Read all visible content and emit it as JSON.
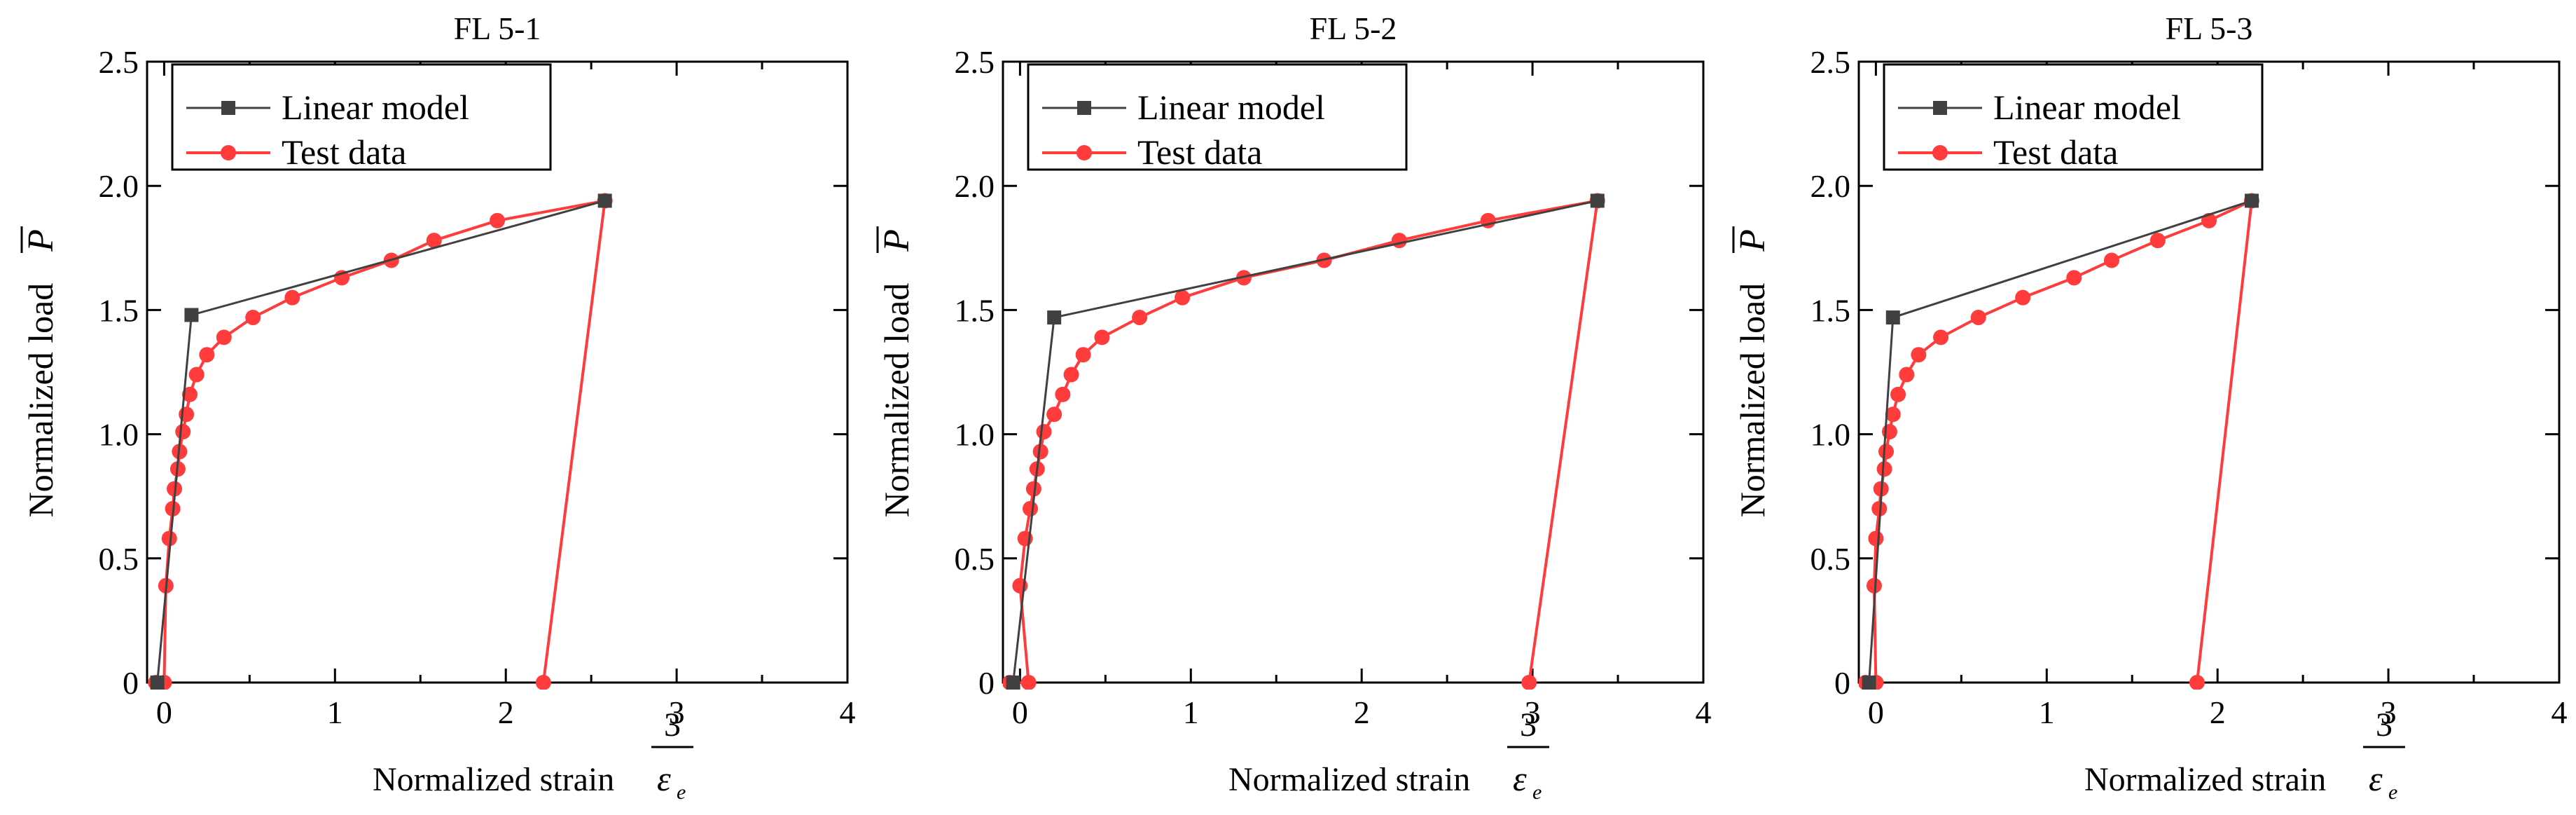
{
  "chart_data": [
    {
      "type": "line",
      "title": "FL 5-1",
      "xlabel": "Normalized strain",
      "xlabel_symbol": "ε",
      "xlabel_subscript": "e",
      "xlabel_overbar_value": "3",
      "ylabel": "Normalized load",
      "ylabel_symbol": "P",
      "xlim": [
        -0.1,
        4
      ],
      "ylim": [
        0,
        2.5
      ],
      "xticks": [
        "0",
        "1",
        "2",
        "3",
        "4"
      ],
      "yticks": [
        "0",
        "0.5",
        "1.0",
        "1.5",
        "2.0",
        "2.5"
      ],
      "legend_position": "top-left",
      "series": [
        {
          "name": "Linear model",
          "color": "#404040",
          "marker": "square",
          "x": [
            -0.04,
            0.16,
            2.58
          ],
          "y": [
            0,
            1.48,
            1.94
          ]
        },
        {
          "name": "Test data",
          "color": "#ff3b3b",
          "marker": "circle",
          "x": [
            -0.05,
            0.0,
            0.01,
            0.03,
            0.05,
            0.06,
            0.08,
            0.09,
            0.11,
            0.13,
            0.15,
            0.19,
            0.25,
            0.35,
            0.52,
            0.75,
            1.04,
            1.33,
            1.58,
            1.95,
            2.58,
            2.22
          ],
          "y": [
            0,
            0,
            0.39,
            0.58,
            0.7,
            0.78,
            0.86,
            0.93,
            1.01,
            1.08,
            1.16,
            1.24,
            1.32,
            1.39,
            1.47,
            1.55,
            1.63,
            1.7,
            1.78,
            1.86,
            1.94,
            0
          ]
        }
      ]
    },
    {
      "type": "line",
      "title": "FL 5-2",
      "xlabel": "Normalized strain",
      "xlabel_symbol": "ε",
      "xlabel_subscript": "e",
      "xlabel_overbar_value": "3",
      "ylabel": "Normalized load",
      "ylabel_symbol": "P",
      "xlim": [
        -0.1,
        4
      ],
      "ylim": [
        0,
        2.5
      ],
      "xticks": [
        "0",
        "1",
        "2",
        "3",
        "4"
      ],
      "yticks": [
        "0",
        "0.5",
        "1.0",
        "1.5",
        "2.0",
        "2.5"
      ],
      "legend_position": "top-left",
      "series": [
        {
          "name": "Linear model",
          "color": "#404040",
          "marker": "square",
          "x": [
            -0.04,
            0.2,
            3.38
          ],
          "y": [
            0,
            1.47,
            1.94
          ]
        },
        {
          "name": "Test data",
          "color": "#ff3b3b",
          "marker": "circle",
          "x": [
            -0.06,
            0.05,
            0.0,
            0.03,
            0.06,
            0.08,
            0.1,
            0.12,
            0.14,
            0.2,
            0.25,
            0.3,
            0.37,
            0.48,
            0.7,
            0.95,
            1.31,
            1.78,
            2.22,
            2.74,
            3.38,
            2.98
          ],
          "y": [
            0,
            0,
            0.39,
            0.58,
            0.7,
            0.78,
            0.86,
            0.93,
            1.01,
            1.08,
            1.16,
            1.24,
            1.32,
            1.39,
            1.47,
            1.55,
            1.63,
            1.7,
            1.78,
            1.86,
            1.94,
            0
          ]
        }
      ]
    },
    {
      "type": "line",
      "title": "FL 5-3",
      "xlabel": "Normalized strain",
      "xlabel_symbol": "ε",
      "xlabel_subscript": "e",
      "xlabel_overbar_value": "3",
      "ylabel": "Normalized load",
      "ylabel_symbol": "P",
      "xlim": [
        -0.1,
        4
      ],
      "ylim": [
        0,
        2.5
      ],
      "xticks": [
        "0",
        "1",
        "2",
        "3",
        "4"
      ],
      "yticks": [
        "0",
        "0.5",
        "1.0",
        "1.5",
        "2.0",
        "2.5"
      ],
      "legend_position": "top-left",
      "series": [
        {
          "name": "Linear model",
          "color": "#404040",
          "marker": "square",
          "x": [
            -0.04,
            0.1,
            2.2
          ],
          "y": [
            0,
            1.47,
            1.94
          ]
        },
        {
          "name": "Test data",
          "color": "#ff3b3b",
          "marker": "circle",
          "x": [
            -0.06,
            0.0,
            -0.01,
            0.0,
            0.02,
            0.03,
            0.05,
            0.06,
            0.08,
            0.1,
            0.13,
            0.18,
            0.25,
            0.38,
            0.6,
            0.86,
            1.16,
            1.38,
            1.65,
            1.95,
            2.2,
            1.88
          ],
          "y": [
            0,
            0,
            0.39,
            0.58,
            0.7,
            0.78,
            0.86,
            0.93,
            1.01,
            1.08,
            1.16,
            1.24,
            1.32,
            1.39,
            1.47,
            1.55,
            1.63,
            1.7,
            1.78,
            1.86,
            1.94,
            0
          ]
        }
      ]
    }
  ]
}
